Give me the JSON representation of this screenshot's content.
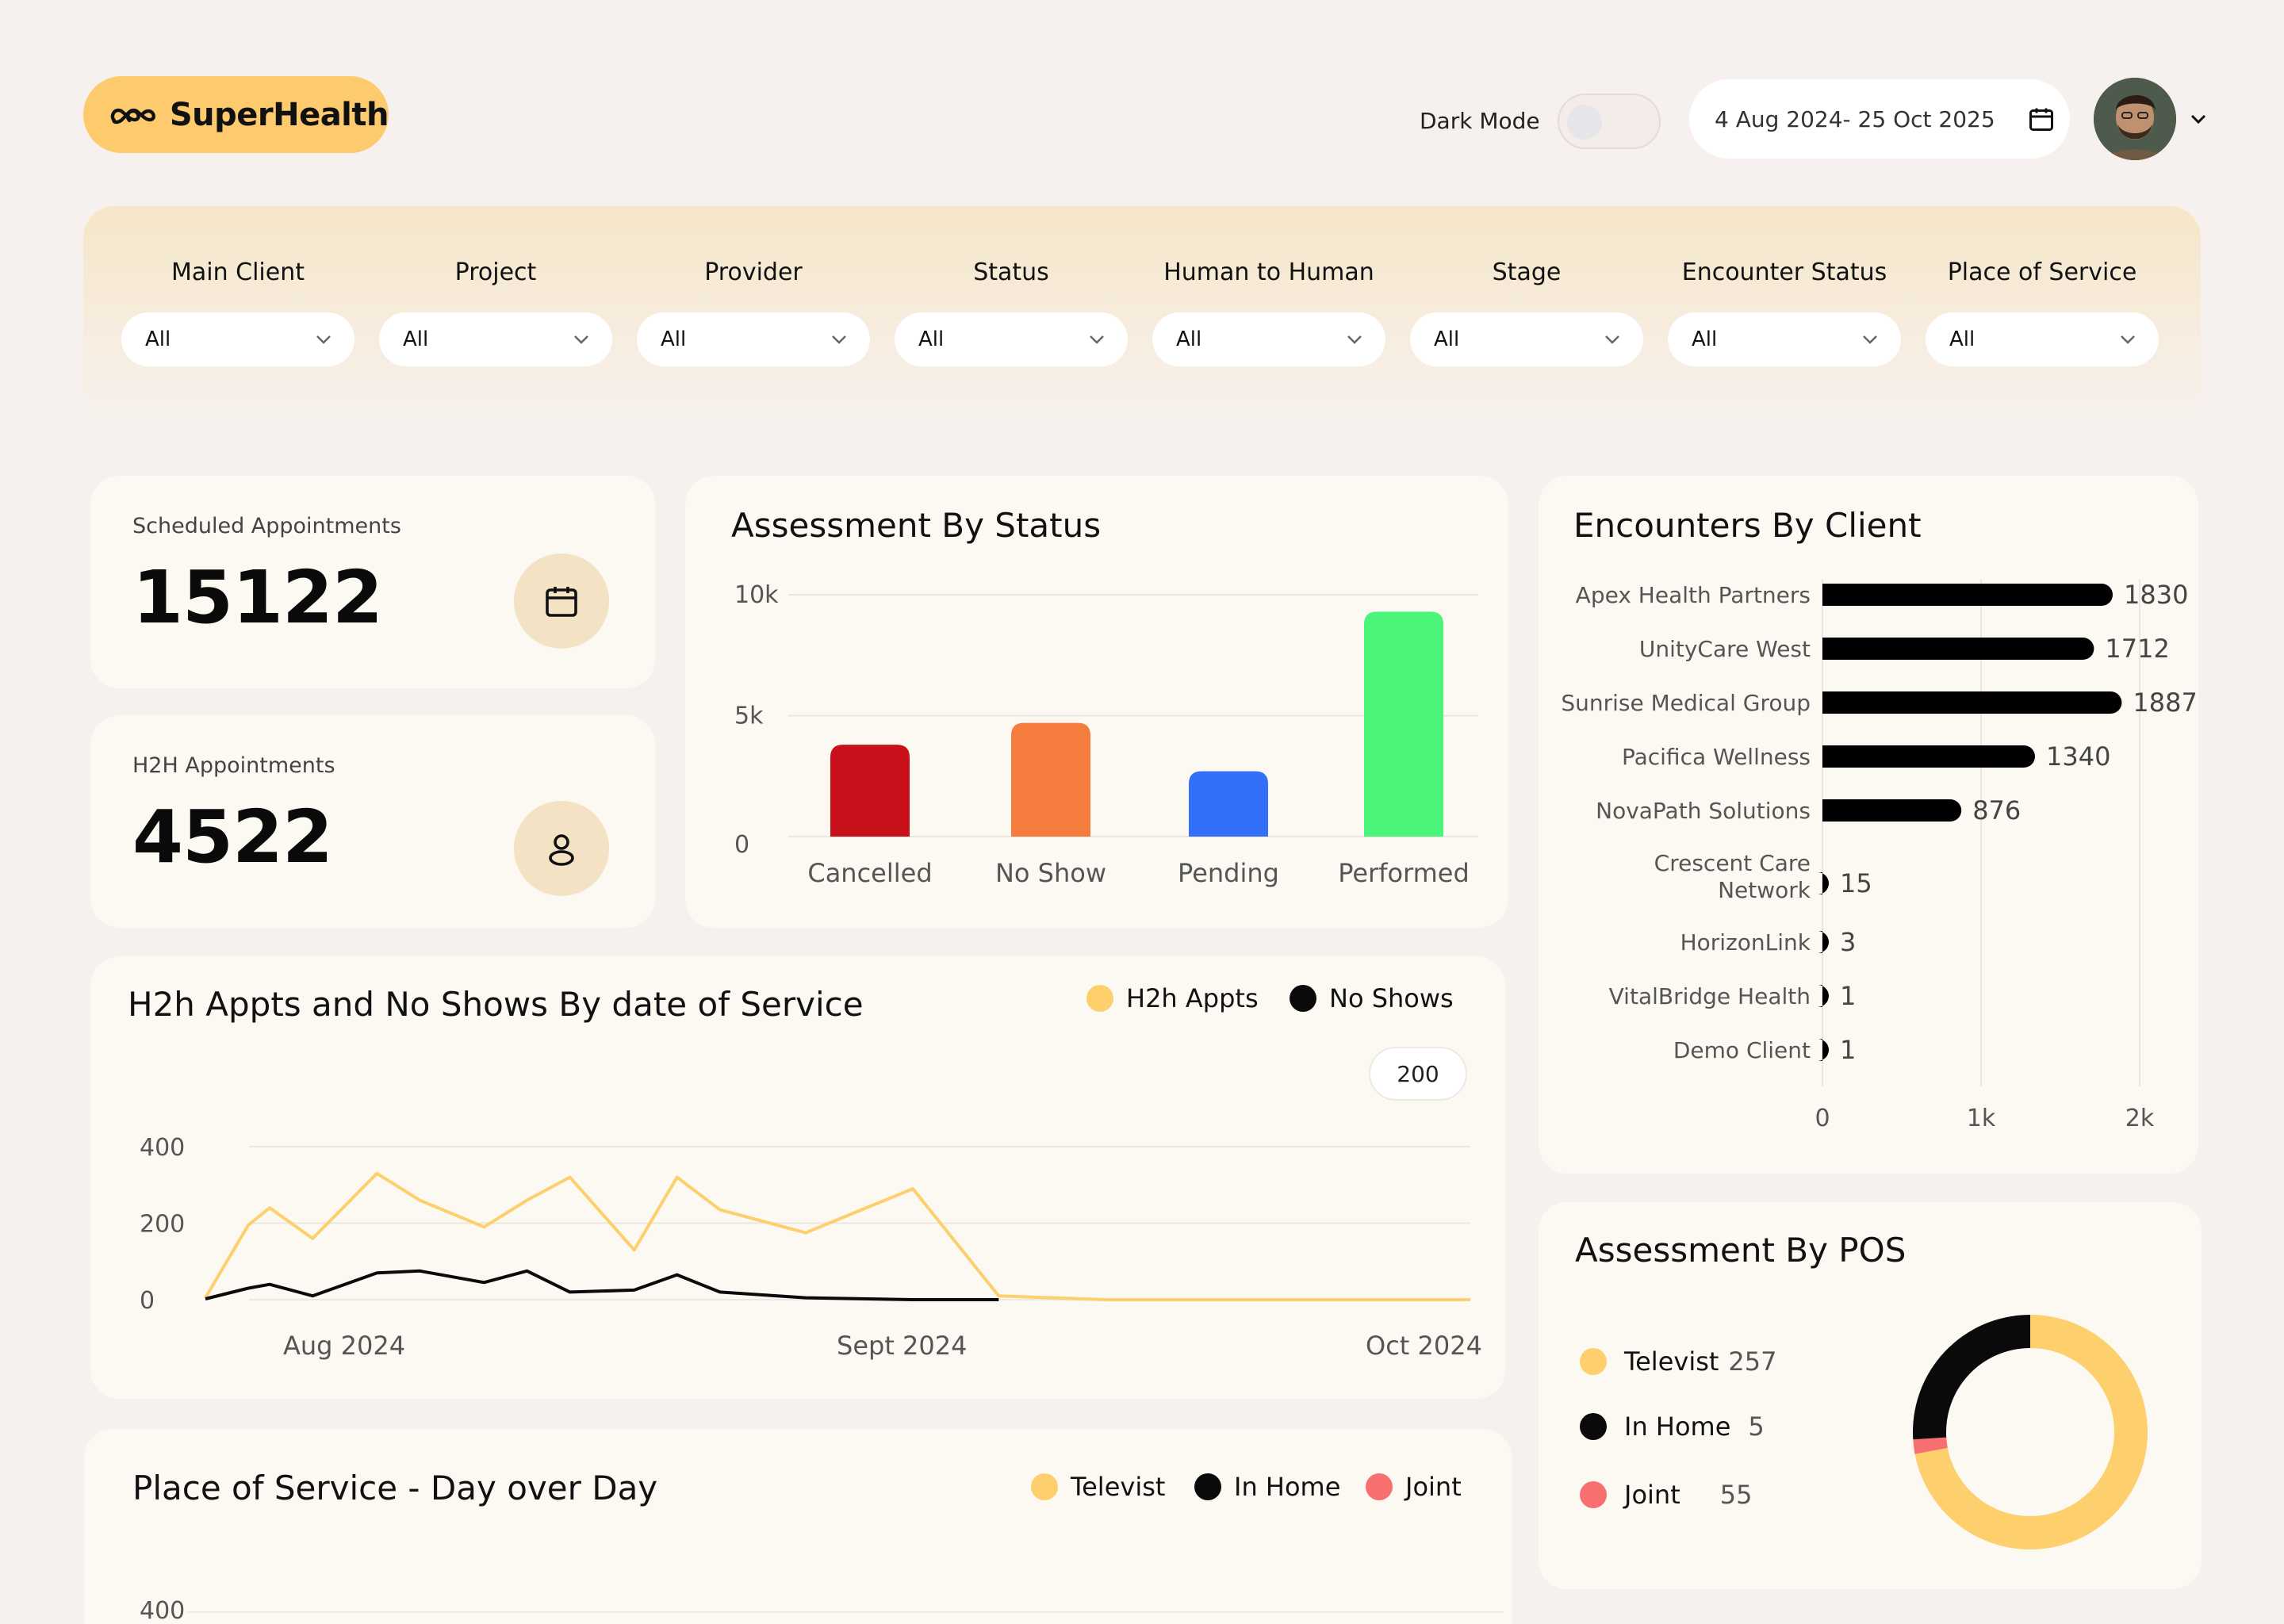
{
  "app": {
    "name": "SuperHealth"
  },
  "header": {
    "dark_mode_label": "Dark Mode",
    "date_range": "4 Aug 2024- 25 Oct 2025"
  },
  "filters": [
    {
      "label": "Main Client",
      "value": "All"
    },
    {
      "label": "Project",
      "value": "All"
    },
    {
      "label": "Provider",
      "value": "All"
    },
    {
      "label": "Status",
      "value": "All"
    },
    {
      "label": "Human to Human",
      "value": "All"
    },
    {
      "label": "Stage",
      "value": "All"
    },
    {
      "label": "Encounter Status",
      "value": "All"
    },
    {
      "label": "Place of Service",
      "value": "All"
    }
  ],
  "stats": {
    "scheduled": {
      "title": "Scheduled Appointments",
      "value": "15122"
    },
    "h2h": {
      "title": "H2H Appointments",
      "value": "4522"
    }
  },
  "colors": {
    "cancelled": "#c8101a",
    "no_show": "#f47c3c",
    "pending": "#3370fa",
    "performed": "#4bf57a",
    "h2h": "#fdcf6d",
    "no_shows": "#0a0a0a",
    "joint": "#f76f6f",
    "card": "#fcf9f2"
  },
  "assessment_by_status": {
    "title": "Assessment By Status",
    "chart_data": {
      "type": "bar",
      "categories": [
        "Cancelled",
        "No Show",
        "Pending",
        "Performed"
      ],
      "values": [
        3800,
        4700,
        2700,
        9300
      ],
      "ylim": [
        0,
        10000
      ],
      "yticks": [
        "0",
        "5k",
        "10k"
      ],
      "grid": true
    }
  },
  "encounters_by_client": {
    "title": "Encounters By Client",
    "chart_data": {
      "type": "bar",
      "orientation": "horizontal",
      "categories": [
        "Apex Health Partners",
        "UnityCare West",
        "Sunrise Medical Group",
        "Pacifica Wellness",
        "NovaPath Solutions",
        "Crescent Care Network",
        "HorizonLink",
        "VitalBridge Health",
        "Demo Client"
      ],
      "values": [
        1830,
        1712,
        1887,
        1340,
        876,
        15,
        3,
        1,
        1
      ],
      "labels": [
        "1830",
        "1712",
        "1887",
        "1340",
        "876",
        "15",
        "3",
        "1",
        "1"
      ],
      "xlim": [
        0,
        2000
      ],
      "xticks": [
        "0",
        "1k",
        "2k"
      ]
    }
  },
  "h2h_chart": {
    "title": "H2h Appts and No Shows By date of Service",
    "legend": [
      "H2h Appts",
      "No Shows"
    ],
    "badge": "200",
    "chart_data": {
      "type": "line",
      "x_labels": [
        "Aug 2024",
        "Sept 2024",
        "Oct 2024"
      ],
      "yticks": [
        "0",
        "200",
        "400"
      ],
      "ylim": [
        0,
        400
      ],
      "series": [
        {
          "name": "H2h Appts",
          "x": [
            0,
            2,
            3,
            5,
            8,
            10,
            13,
            15,
            17,
            20,
            22,
            24,
            28,
            33,
            37,
            42,
            48,
            53,
            59
          ],
          "values": [
            5,
            195,
            240,
            160,
            330,
            260,
            190,
            260,
            320,
            130,
            320,
            235,
            175,
            290,
            10,
            0,
            0,
            0,
            0
          ]
        },
        {
          "name": "No Shows",
          "x": [
            0,
            2,
            3,
            5,
            8,
            10,
            13,
            15,
            17,
            20,
            22,
            24,
            28,
            33,
            37
          ],
          "values": [
            2,
            30,
            40,
            10,
            70,
            75,
            45,
            75,
            20,
            25,
            65,
            20,
            5,
            0,
            0
          ]
        }
      ]
    }
  },
  "pos_day": {
    "title": "Place of Service - Day over Day",
    "legend": [
      "Televist",
      "In Home",
      "Joint"
    ],
    "ytick_top": "400"
  },
  "assessment_by_pos": {
    "title": "Assessment By POS",
    "chart_data": {
      "type": "pie",
      "donut": true,
      "labels": [
        "Televist",
        "In Home",
        "Joint"
      ],
      "values": [
        257,
        5,
        55
      ],
      "display_values": [
        "257",
        "5",
        "55"
      ]
    }
  }
}
